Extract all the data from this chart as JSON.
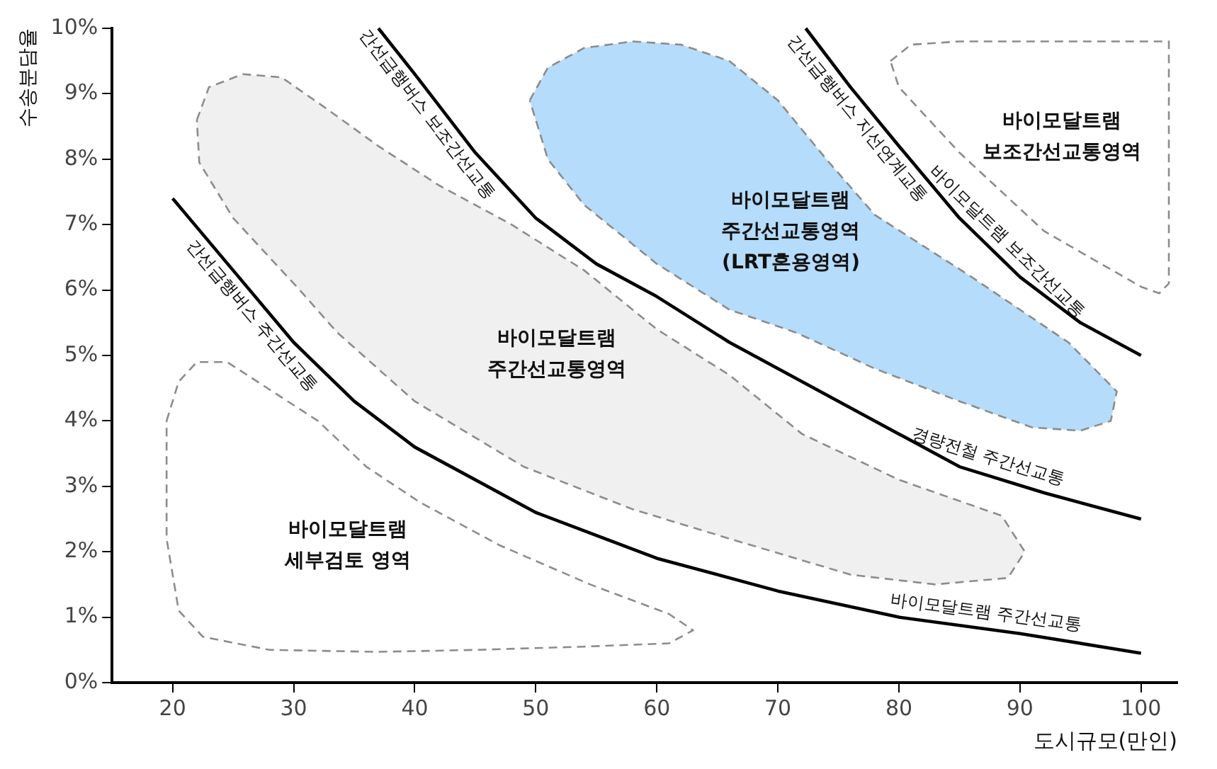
{
  "chart_data": {
    "type": "line",
    "xlabel": "도시규모(만인)",
    "ylabel": "수송분담율",
    "xlim": [
      15,
      103
    ],
    "xticks": [
      20,
      30,
      40,
      50,
      60,
      70,
      80,
      90,
      100
    ],
    "ylim": [
      0,
      10
    ],
    "yticks": [
      {
        "value": 0,
        "label": "0%"
      },
      {
        "value": 1,
        "label": "1%"
      },
      {
        "value": 2,
        "label": "2%"
      },
      {
        "value": 3,
        "label": "3%"
      },
      {
        "value": 4,
        "label": "4%"
      },
      {
        "value": 5,
        "label": "5%"
      },
      {
        "value": 6,
        "label": "6%"
      },
      {
        "value": 7,
        "label": "7%"
      },
      {
        "value": 8,
        "label": "8%"
      },
      {
        "value": 9,
        "label": "9%"
      },
      {
        "value": 10,
        "label": "10%"
      }
    ],
    "series": [
      {
        "type": "area",
        "line_style": "dashed",
        "color": "#ffffff",
        "x": [
          79.3,
          81,
          85,
          102.3,
          102.3,
          101.5,
          100,
          92,
          85,
          80,
          79.3
        ],
        "values": [
          9.5,
          9.75,
          9.8,
          9.8,
          6.1,
          5.95,
          6.05,
          6.9,
          8.1,
          9.1,
          9.5
        ]
      },
      {
        "type": "area",
        "line_style": "dashed",
        "color": "#b5dcfa",
        "x": [
          49.5,
          51,
          54,
          58,
          62,
          66,
          70,
          74,
          78,
          86,
          94,
          98,
          97.5,
          95,
          91,
          85,
          78,
          71.5,
          66,
          60,
          54,
          51,
          49.5
        ],
        "values": [
          8.9,
          9.4,
          9.7,
          9.8,
          9.75,
          9.5,
          8.9,
          8.0,
          7.15,
          6.2,
          5.2,
          4.45,
          4.0,
          3.85,
          3.9,
          4.3,
          4.8,
          5.35,
          5.7,
          6.4,
          7.3,
          8.0,
          8.9
        ]
      },
      {
        "type": "area",
        "line_style": "dashed",
        "color": "#f0f0f0",
        "x": [
          22,
          23,
          25.8,
          29,
          32.5,
          37,
          42,
          48,
          54,
          60,
          66,
          72,
          80,
          88.5,
          90.4,
          89,
          83,
          76,
          66,
          58,
          49,
          40,
          33.6,
          30.5,
          25,
          22.2,
          22
        ],
        "values": [
          8.6,
          9.1,
          9.3,
          9.25,
          8.8,
          8.2,
          7.6,
          7.0,
          6.3,
          5.4,
          4.7,
          3.8,
          3.1,
          2.55,
          2.0,
          1.6,
          1.5,
          1.65,
          2.2,
          2.65,
          3.3,
          4.3,
          5.35,
          6.0,
          7.1,
          7.95,
          8.6
        ]
      },
      {
        "type": "area",
        "line_style": "dashed",
        "color": "#ffffff",
        "x": [
          19.5,
          20.5,
          22,
          24.5,
          27,
          32,
          36,
          40.4,
          47,
          54.5,
          61,
          63,
          61,
          54,
          45,
          37,
          28,
          22.5,
          20.5,
          19.5,
          19.5
        ],
        "values": [
          4.0,
          4.6,
          4.9,
          4.9,
          4.6,
          4.0,
          3.3,
          2.76,
          2.1,
          1.5,
          1.05,
          0.8,
          0.6,
          0.55,
          0.5,
          0.47,
          0.5,
          0.7,
          1.1,
          2.2,
          4.0
        ]
      },
      {
        "color": "#000000",
        "x": [
          20,
          25,
          30,
          35,
          40,
          50,
          60,
          70,
          80,
          90,
          100
        ],
        "values": [
          7.4,
          6.3,
          5.2,
          4.3,
          3.6,
          2.6,
          1.9,
          1.4,
          1.0,
          0.75,
          0.45
        ]
      },
      {
        "color": "#000000",
        "x": [
          37,
          40,
          45,
          50,
          55,
          60,
          66,
          70,
          77,
          85,
          92,
          100
        ],
        "values": [
          10,
          9.3,
          8.1,
          7.1,
          6.4,
          5.9,
          5.2,
          4.8,
          4.1,
          3.3,
          2.9,
          2.5
        ]
      },
      {
        "color": "#000000",
        "x": [
          72.3,
          76,
          80,
          85,
          90,
          95,
          100
        ],
        "values": [
          10,
          9.1,
          8.2,
          7.1,
          6.2,
          5.5,
          5.0
        ]
      }
    ],
    "annotations": [
      "바이모달트램\n보조간선교통영역",
      "바이모달트램\n주간선교통영역\n(LRT혼용영역)",
      "바이모달트램\n주간선교통영역",
      "바이모달트램\n세부검토 영역",
      {
        "text": "간선급행버스 보조간선교통",
        "x": 42,
        "y": 8.82
      },
      {
        "text": "간선급행버스 주간선교통",
        "x": 27.5,
        "y": 5.75
      },
      {
        "text": "간선급행버스 지선연계교통",
        "x": 77.5,
        "y": 8.76
      },
      {
        "text": "바이모달트램 보조간선교통",
        "x": 88,
        "y": 6.56
      },
      {
        "text": "경량전철 주간선교통",
        "x": 87,
        "y": 3.21
      },
      {
        "text": "바이모달트램 주간선교통",
        "x": 87,
        "y": 0.83
      }
    ]
  }
}
